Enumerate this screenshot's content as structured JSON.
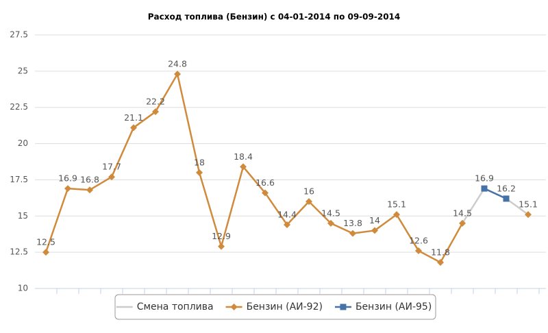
{
  "chart_data": {
    "type": "line",
    "title": "Расход топлива (Бензин) с 04-01-2014 по 09-09-2014",
    "categories": [
      null,
      null,
      null,
      null,
      null,
      null,
      null,
      null,
      null,
      null,
      null,
      null,
      null,
      null,
      null,
      null,
      null,
      null,
      null,
      null,
      null,
      null,
      null
    ],
    "series": [
      {
        "name": "Смена топлива",
        "color": "#cccccc",
        "marker": "none",
        "values": [
          null,
          null,
          null,
          null,
          null,
          null,
          null,
          null,
          null,
          null,
          null,
          null,
          null,
          null,
          null,
          null,
          null,
          null,
          null,
          14.5,
          16.9,
          16.2,
          15.1
        ]
      },
      {
        "name": "Бензин (АИ-92)",
        "color": "#d08a3c",
        "marker": "diamond",
        "values": [
          12.5,
          16.9,
          16.8,
          17.7,
          21.1,
          22.2,
          24.8,
          18,
          12.9,
          18.4,
          16.6,
          14.4,
          16,
          14.5,
          13.8,
          14,
          15.1,
          12.6,
          11.8,
          14.5,
          null,
          null,
          15.1
        ]
      },
      {
        "name": "Бензин (АИ-95)",
        "color": "#4572a7",
        "marker": "square",
        "values": [
          null,
          null,
          null,
          null,
          null,
          null,
          null,
          null,
          null,
          null,
          null,
          null,
          null,
          null,
          null,
          null,
          null,
          null,
          null,
          null,
          16.9,
          16.2,
          null
        ]
      }
    ],
    "data_labels": [
      false,
      true,
      true
    ],
    "ylim": [
      10,
      27.5
    ],
    "yticks": [
      10,
      12.5,
      15,
      17.5,
      20,
      22.5,
      25,
      27.5
    ],
    "grid": true,
    "legend": "bottom"
  }
}
